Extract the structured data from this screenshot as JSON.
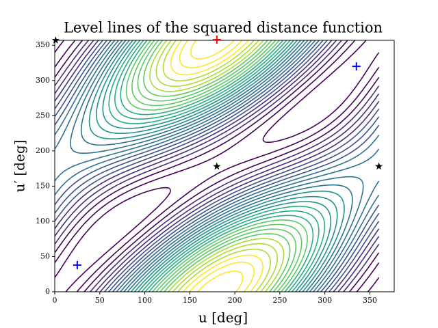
{
  "chart_data": {
    "type": "contour",
    "title": "Level lines of the squared distance function",
    "xlabel": "u [deg]",
    "ylabel": "u′ [deg]",
    "xlim": [
      0,
      377
    ],
    "ylim": [
      0,
      357
    ],
    "xticks": [
      0,
      50,
      100,
      150,
      200,
      250,
      300,
      350
    ],
    "yticks": [
      0,
      50,
      100,
      150,
      200,
      250,
      300,
      350
    ],
    "points": [
      {
        "x": 25,
        "y": 38,
        "marker": "plus",
        "color": "#0000ff"
      },
      {
        "x": 335,
        "y": 320,
        "marker": "plus",
        "color": "#0000ff"
      },
      {
        "x": 180,
        "y": 358,
        "marker": "plus",
        "color": "#ff0000"
      },
      {
        "x": 180,
        "y": 178,
        "marker": "star",
        "color": "#000000"
      },
      {
        "x": 360,
        "y": 178,
        "marker": "star",
        "color": "#000000"
      },
      {
        "x": 1,
        "y": 357,
        "marker": "star",
        "color": "#000000"
      }
    ]
  }
}
